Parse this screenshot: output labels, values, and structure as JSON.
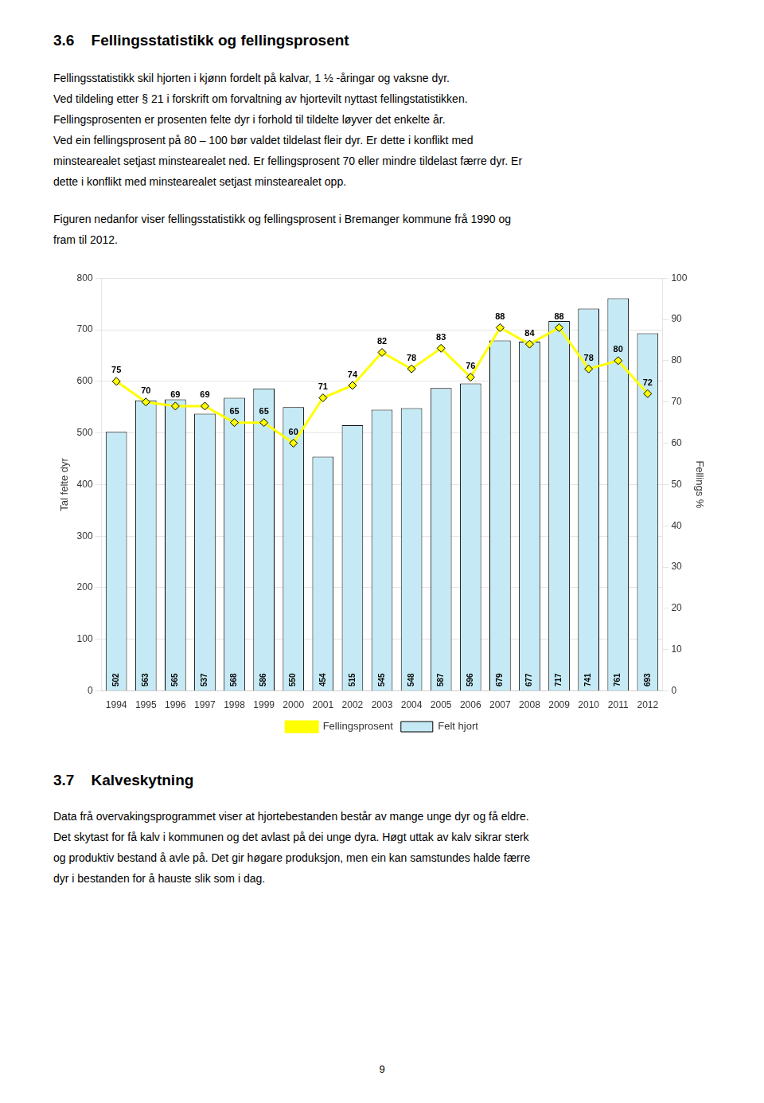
{
  "title": "3.6    Fellingsstatistikk og fellingsprosent",
  "paragraphs": [
    [
      "Fellingsstatistikk skil hjorten i kjønn fordelt på kalvar, 1 ½ -åringar og vaksne dyr.",
      "Ved tildeling etter § 21 i forskrift om forvaltning av hjortevilt nyttast fellingstatistikken.",
      "Fellingsprosenten er prosenten felte dyr i forhold til tildelte løyver det enkelte år.",
      "Ved ein fellingsprosent på 80 – 100 bør valdet tildelast fleir dyr. Er dette i konflikt med",
      "minstearealet setjast minstearealet ned. Er fellingsprosent 70 eller mindre tildelast færre dyr. Er",
      "dette i konflikt med minstearealet setjast minstearealet opp."
    ],
    [
      "Figuren nedanfor viser fellingsstatistikk og fellingsprosent i Bremanger kommune frå 1990 og",
      "fram til 2012."
    ]
  ],
  "chart_data": {
    "type": "bar",
    "categories": [
      1994,
      1995,
      1996,
      1997,
      1998,
      1999,
      2000,
      2001,
      2002,
      2003,
      2004,
      2005,
      2006,
      2007,
      2008,
      2009,
      2010,
      2011,
      2012
    ],
    "series": [
      {
        "name": "Felt hjort",
        "type": "bar",
        "color": "#c6eaf5",
        "values": [
          502,
          563,
          565,
          537,
          568,
          586,
          550,
          454,
          515,
          545,
          548,
          587,
          596,
          679,
          677,
          717,
          741,
          761,
          693
        ]
      },
      {
        "name": "Fellingsprosent",
        "type": "line",
        "color": "#ffff00",
        "marker": "diamond",
        "axis": "y2",
        "values": [
          75,
          70,
          69,
          69,
          65,
          65,
          60,
          71,
          74,
          82,
          78,
          83,
          76,
          88,
          84,
          88,
          78,
          80,
          72
        ]
      }
    ],
    "ylabel": "Tal felte dyr",
    "y2label": "Fellings %",
    "ylim": [
      0,
      800
    ],
    "yticks": [
      0,
      100,
      200,
      300,
      400,
      500,
      600,
      700,
      800
    ],
    "y2lim": [
      0,
      100
    ],
    "y2ticks": [
      0,
      10,
      20,
      30,
      40,
      50,
      60,
      70,
      80,
      90,
      100
    ],
    "grid": true,
    "legend": "bottom",
    "data_labels": true
  },
  "section_title": "3.7    Kalveskytning",
  "section_paragraphs": [
    "Data frå overvakingsprogrammet viser at hjortebestanden består av mange unge dyr og få eldre.",
    "Det skytast for få kalv i kommunen og det avlast på dei unge dyra. Høgt uttak av kalv sikrar sterk",
    "og produktiv bestand å avle på. Det gir høgare produksjon, men ein kan samstundes halde færre",
    "dyr i bestanden for å hauste slik som i dag."
  ],
  "page_number": "9"
}
